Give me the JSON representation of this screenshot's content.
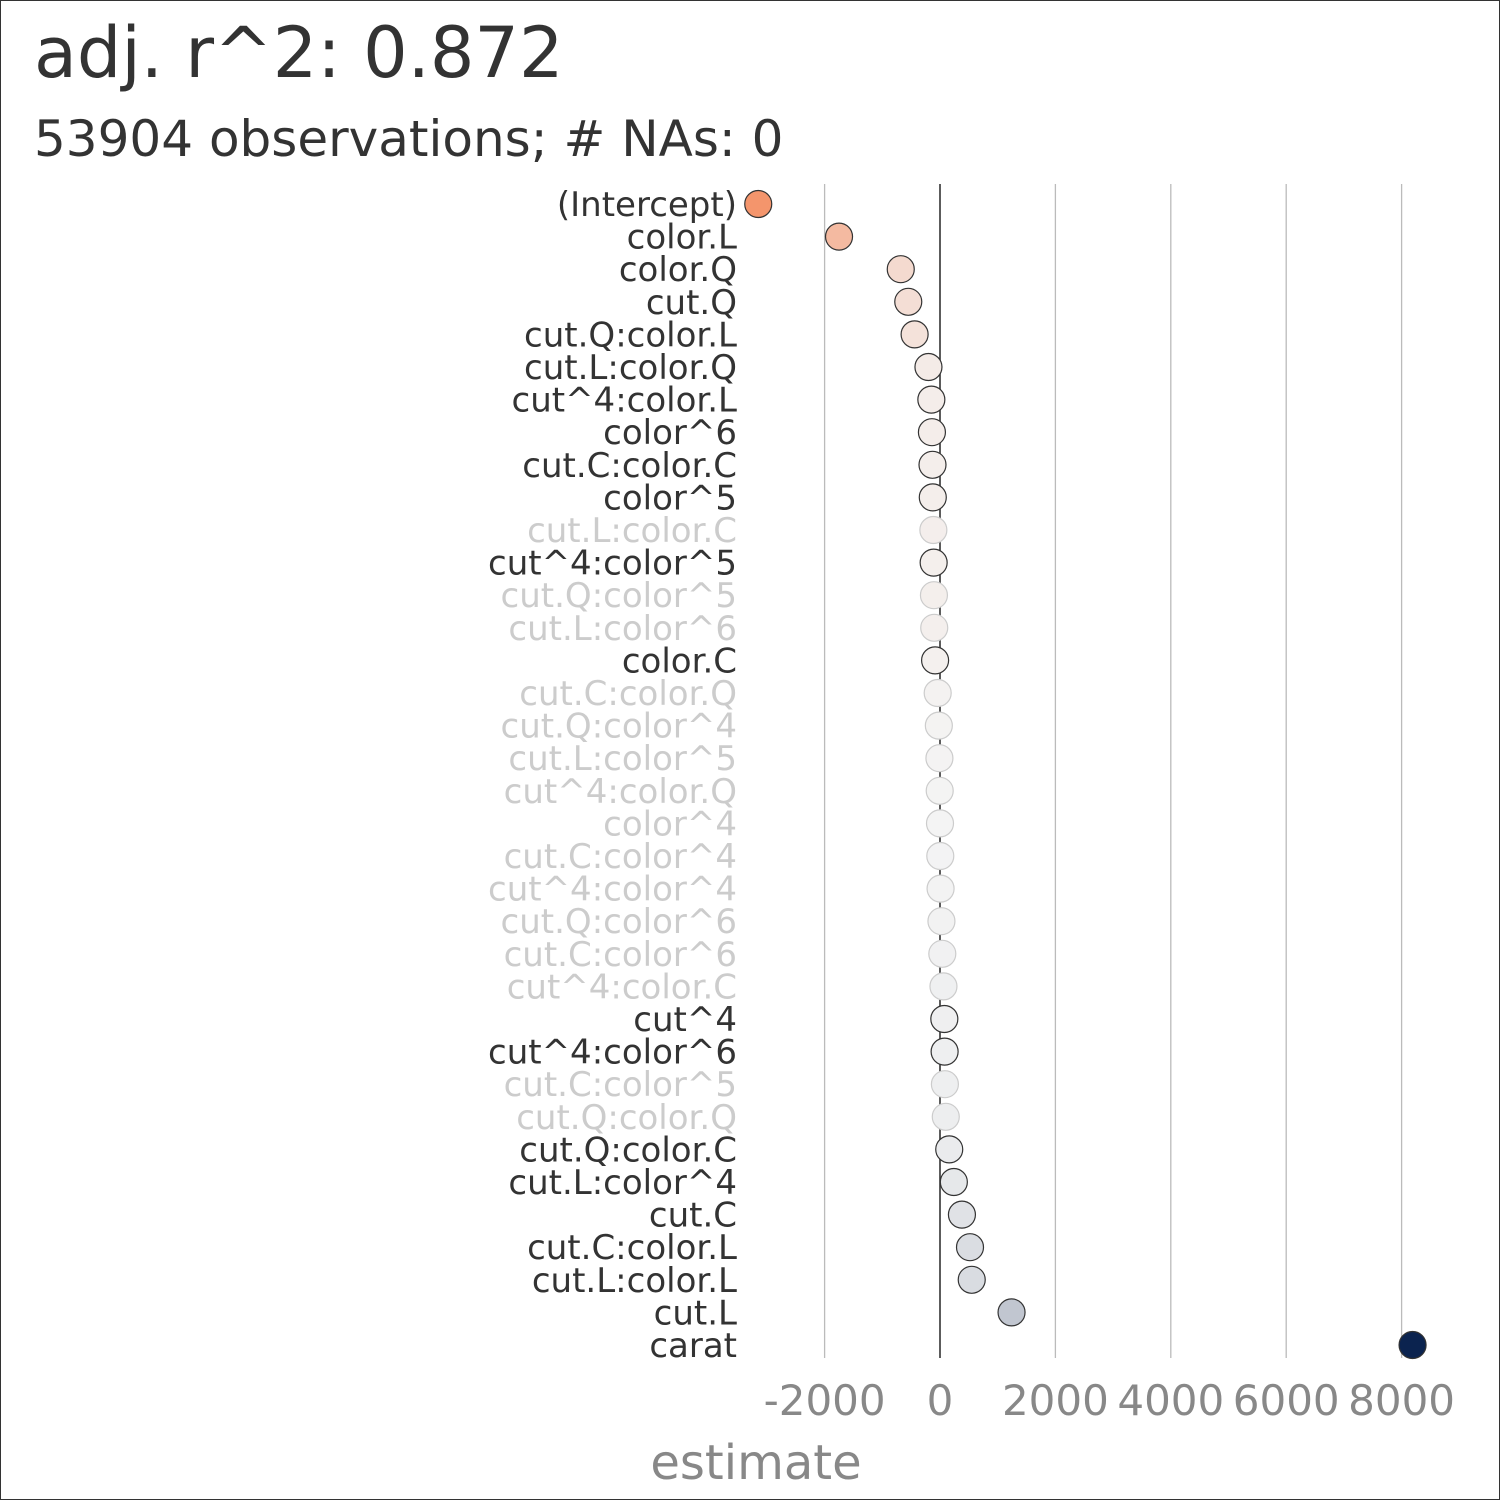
{
  "header": {
    "title": "adj. r^2: 0.872",
    "subtitle": "53904 observations; # NAs: 0"
  },
  "chart_data": {
    "type": "scatter",
    "xlabel": "estimate",
    "ylabel": "",
    "xlim": [
      -3500,
      9300
    ],
    "x_ticks": [
      -2000,
      0,
      2000,
      4000,
      6000,
      8000
    ],
    "x_tick_labels": [
      "-2000",
      "0",
      "2000",
      "4000",
      "6000",
      "8000"
    ],
    "grid": true,
    "colors": {
      "negative_max": "#f4956c",
      "neutral": "#f4f4f4",
      "positive_max": "#0b234f",
      "grid": "#bbbbbb",
      "zero_line": "#333333",
      "label_significant": "#333333",
      "label_not_significant": "#cccccc"
    },
    "terms": [
      {
        "term": "(Intercept)",
        "estimate": -3150,
        "significant": true
      },
      {
        "term": "color.L",
        "estimate": -1750,
        "significant": true
      },
      {
        "term": "color.Q",
        "estimate": -680,
        "significant": true
      },
      {
        "term": "cut.Q",
        "estimate": -550,
        "significant": true
      },
      {
        "term": "cut.Q:color.L",
        "estimate": -440,
        "significant": true
      },
      {
        "term": "cut.L:color.Q",
        "estimate": -200,
        "significant": true
      },
      {
        "term": "cut^4:color.L",
        "estimate": -150,
        "significant": true
      },
      {
        "term": "color^6",
        "estimate": -140,
        "significant": true
      },
      {
        "term": "cut.C:color.C",
        "estimate": -130,
        "significant": true
      },
      {
        "term": "color^5",
        "estimate": -125,
        "significant": true
      },
      {
        "term": "cut.L:color.C",
        "estimate": -115,
        "significant": false
      },
      {
        "term": "cut^4:color^5",
        "estimate": -110,
        "significant": true
      },
      {
        "term": "cut.Q:color^5",
        "estimate": -105,
        "significant": false
      },
      {
        "term": "cut.L:color^6",
        "estimate": -100,
        "significant": false
      },
      {
        "term": "color.C",
        "estimate": -85,
        "significant": true
      },
      {
        "term": "cut.C:color.Q",
        "estimate": -40,
        "significant": false
      },
      {
        "term": "cut.Q:color^4",
        "estimate": -20,
        "significant": false
      },
      {
        "term": "cut.L:color^5",
        "estimate": -10,
        "significant": false
      },
      {
        "term": "cut^4:color.Q",
        "estimate": -5,
        "significant": false
      },
      {
        "term": "color^4",
        "estimate": 0,
        "significant": false
      },
      {
        "term": "cut.C:color^4",
        "estimate": 5,
        "significant": false
      },
      {
        "term": "cut^4:color^4",
        "estimate": 10,
        "significant": false
      },
      {
        "term": "cut.Q:color^6",
        "estimate": 25,
        "significant": false
      },
      {
        "term": "cut.C:color^6",
        "estimate": 40,
        "significant": false
      },
      {
        "term": "cut^4:color.C",
        "estimate": 60,
        "significant": false
      },
      {
        "term": "cut^4",
        "estimate": 75,
        "significant": true
      },
      {
        "term": "cut^4:color^6",
        "estimate": 80,
        "significant": true
      },
      {
        "term": "cut.C:color^5",
        "estimate": 85,
        "significant": false
      },
      {
        "term": "cut.Q:color.Q",
        "estimate": 100,
        "significant": false
      },
      {
        "term": "cut.Q:color.C",
        "estimate": 160,
        "significant": true
      },
      {
        "term": "cut.L:color^4",
        "estimate": 240,
        "significant": true
      },
      {
        "term": "cut.C",
        "estimate": 380,
        "significant": true
      },
      {
        "term": "cut.C:color.L",
        "estimate": 520,
        "significant": true
      },
      {
        "term": "cut.L:color.L",
        "estimate": 550,
        "significant": true
      },
      {
        "term": "cut.L",
        "estimate": 1240,
        "significant": true
      },
      {
        "term": "carat",
        "estimate": 8190,
        "significant": true
      }
    ]
  }
}
